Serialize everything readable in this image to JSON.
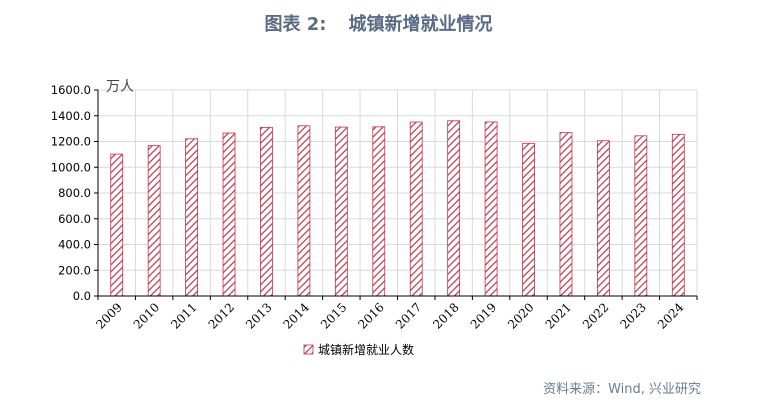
{
  "header": {
    "figure_no": "图表 2:",
    "title": "城镇新增就业情况"
  },
  "footer": {
    "source": "资料来源：Wind, 兴业研究"
  },
  "colors": {
    "bar": "#c0334a",
    "title": "#5b6b86",
    "grid": "#d9d9d9"
  },
  "chart_data": {
    "type": "bar",
    "unit_label": "万人",
    "categories": [
      "2009",
      "2010",
      "2011",
      "2012",
      "2013",
      "2014",
      "2015",
      "2016",
      "2017",
      "2018",
      "2019",
      "2020",
      "2021",
      "2022",
      "2023",
      "2024"
    ],
    "series": [
      {
        "name": "城镇新增就业人数",
        "values": [
          1102,
          1168,
          1221,
          1266,
          1310,
          1322,
          1312,
          1314,
          1351,
          1361,
          1352,
          1186,
          1269,
          1206,
          1244,
          1256
        ]
      }
    ],
    "y_ticks": [
      "0.0",
      "200.0",
      "400.0",
      "600.0",
      "800.0",
      "1000.0",
      "1200.0",
      "1400.0",
      "1600.0"
    ],
    "ylim": [
      0,
      1600
    ],
    "grid": true,
    "legend_position": "bottom"
  }
}
